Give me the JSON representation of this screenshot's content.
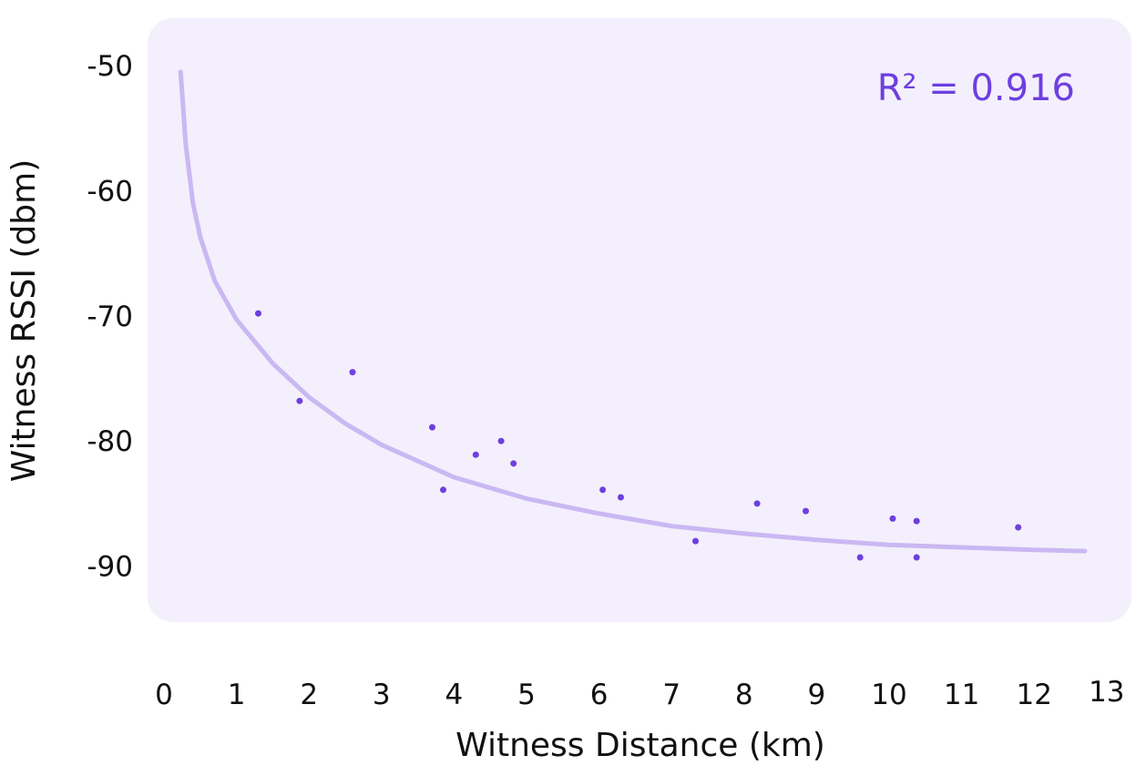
{
  "chart_data": {
    "type": "scatter",
    "xlabel": "Witness Distance (km)",
    "ylabel": "Witness RSSI (dbm)",
    "annotation": "R² = 0.916",
    "xlim": [
      0,
      13
    ],
    "ylim": [
      -95,
      -48
    ],
    "x_ticks": [
      "0",
      "1",
      "2",
      "3",
      "4",
      "5",
      "6",
      "7",
      "8",
      "9",
      "10",
      "11",
      "12",
      "13"
    ],
    "y_ticks": [
      "-50",
      "-60",
      "-70",
      "-80",
      "-90"
    ],
    "grid": false,
    "points": [
      {
        "x": 1.3,
        "y": -69.8
      },
      {
        "x": 1.87,
        "y": -76.8
      },
      {
        "x": 2.6,
        "y": -74.5
      },
      {
        "x": 3.7,
        "y": -78.9
      },
      {
        "x": 3.85,
        "y": -83.9
      },
      {
        "x": 4.3,
        "y": -81.1
      },
      {
        "x": 4.65,
        "y": -80.0
      },
      {
        "x": 4.82,
        "y": -81.8
      },
      {
        "x": 6.05,
        "y": -83.9
      },
      {
        "x": 6.3,
        "y": -84.5
      },
      {
        "x": 7.33,
        "y": -88.0
      },
      {
        "x": 8.18,
        "y": -85.0
      },
      {
        "x": 8.85,
        "y": -85.6
      },
      {
        "x": 9.6,
        "y": -89.3
      },
      {
        "x": 10.05,
        "y": -86.2
      },
      {
        "x": 10.38,
        "y": -86.4
      },
      {
        "x": 10.38,
        "y": -89.3
      },
      {
        "x": 11.78,
        "y": -86.9
      }
    ],
    "trendline": {
      "type": "fit",
      "x": [
        0.23,
        0.3,
        0.4,
        0.5,
        0.7,
        1.0,
        1.5,
        2.0,
        2.5,
        3.0,
        4.0,
        5.0,
        6.0,
        7.0,
        8.0,
        9.0,
        10.0,
        11.0,
        12.0,
        12.7
      ],
      "y": [
        -50.5,
        -56.3,
        -61.0,
        -63.7,
        -67.2,
        -70.3,
        -73.8,
        -76.5,
        -78.6,
        -80.3,
        -82.9,
        -84.6,
        -85.8,
        -86.8,
        -87.4,
        -87.9,
        -88.3,
        -88.5,
        -88.7,
        -88.8
      ]
    },
    "colors": {
      "panel": "#f4effc",
      "points": "#6d3fe0",
      "trendline": "#c9b8f2",
      "annotation": "#6d3fe0"
    }
  }
}
